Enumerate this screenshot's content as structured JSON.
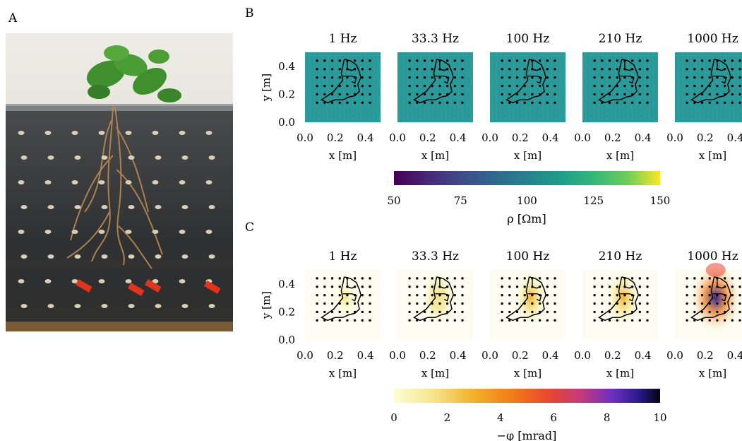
{
  "panels": {
    "A": {
      "label": "A"
    },
    "B": {
      "label": "B",
      "quantity": "resistivity"
    },
    "C": {
      "label": "C",
      "quantity": "phase"
    }
  },
  "frequencies": [
    "1 Hz",
    "33.3 Hz",
    "100 Hz",
    "210 Hz",
    "1000 Hz"
  ],
  "axes": {
    "xlabel": "x [m]",
    "ylabel": "y [m]",
    "x_ticks": [
      0.0,
      0.2,
      0.4
    ],
    "x_tick_labels": [
      "0.0",
      "0.2",
      "0.4"
    ],
    "y_ticks": [
      0.0,
      0.2,
      0.4
    ],
    "y_tick_labels": [
      "0.0",
      "0.2",
      "0.4"
    ],
    "xlim": [
      0.0,
      0.5
    ],
    "ylim": [
      0.0,
      0.5
    ]
  },
  "colorbars": {
    "B": {
      "label": "ρ [Ωm]",
      "ticks": [
        50,
        75,
        100,
        125,
        150
      ],
      "tick_labels": [
        "50",
        "75",
        "100",
        "125",
        "150"
      ],
      "range": [
        50,
        150
      ],
      "colormap": "viridis"
    },
    "C": {
      "label": "−φ [mrad]",
      "ticks": [
        0,
        2,
        4,
        6,
        8,
        10
      ],
      "tick_labels": [
        "0",
        "2",
        "4",
        "6",
        "8",
        "10"
      ],
      "range": [
        0,
        10
      ],
      "colormap": "inferno-reversed"
    }
  },
  "colors": {
    "resistivity_background": "#2b9a9a",
    "electrode_dot": "#000000",
    "root_outline": "#000000"
  },
  "chart_data": [
    {
      "type": "heatmap",
      "panel": "B",
      "series": [
        {
          "frequency": "1 Hz",
          "uniform_value": 100
        },
        {
          "frequency": "33.3 Hz",
          "uniform_value": 100
        },
        {
          "frequency": "100 Hz",
          "uniform_value": 100
        },
        {
          "frequency": "210 Hz",
          "uniform_value": 100
        },
        {
          "frequency": "1000 Hz",
          "uniform_value": 100
        }
      ]
    },
    {
      "type": "heatmap",
      "panel": "C",
      "anomaly_center": [
        0.27,
        0.3
      ],
      "series": [
        {
          "frequency": "1 Hz",
          "peak_value": 1.5
        },
        {
          "frequency": "33.3 Hz",
          "peak_value": 2.5
        },
        {
          "frequency": "100 Hz",
          "peak_value": 3.0
        },
        {
          "frequency": "210 Hz",
          "peak_value": 4.0
        },
        {
          "frequency": "1000 Hz",
          "peak_value": 9.5
        }
      ]
    }
  ]
}
